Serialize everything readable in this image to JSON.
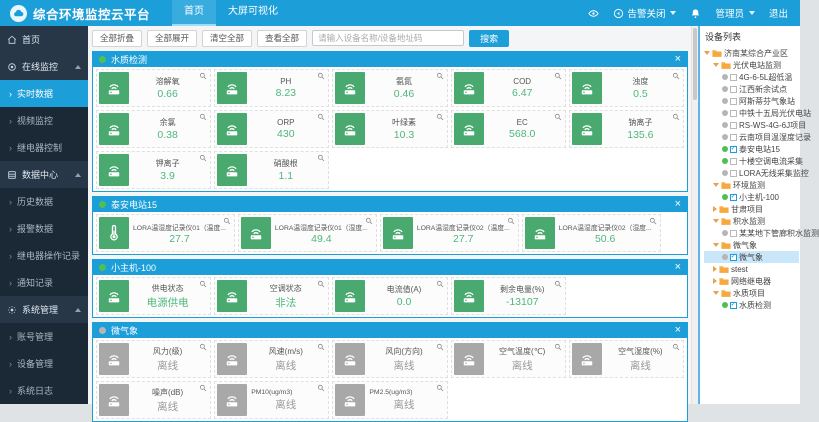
{
  "header": {
    "title": "综合环境监控云平台",
    "nav": [
      {
        "label": "首页",
        "active": true
      },
      {
        "label": "大屏可视化",
        "active": false
      }
    ],
    "right": {
      "alarm_label": "告警关闭",
      "user_label": "管理员",
      "logout_label": "退出"
    }
  },
  "sidebar": {
    "items": [
      {
        "label": "首页",
        "type": "top",
        "icon": "home-icon"
      },
      {
        "label": "在线监控",
        "type": "group",
        "icon": "monitor-icon"
      },
      {
        "label": "实时数据",
        "type": "child",
        "active": true
      },
      {
        "label": "视频监控",
        "type": "child",
        "active": false
      },
      {
        "label": "继电器控制",
        "type": "child",
        "active": false
      },
      {
        "label": "数据中心",
        "type": "group",
        "icon": "database-icon"
      },
      {
        "label": "历史数据",
        "type": "child",
        "active": false
      },
      {
        "label": "报警数据",
        "type": "child",
        "active": false
      },
      {
        "label": "继电器操作记录",
        "type": "child",
        "active": false
      },
      {
        "label": "通知记录",
        "type": "child",
        "active": false
      },
      {
        "label": "系统管理",
        "type": "group",
        "icon": "gear-icon"
      },
      {
        "label": "账号管理",
        "type": "child",
        "active": false
      },
      {
        "label": "设备管理",
        "type": "child",
        "active": false
      },
      {
        "label": "系统日志",
        "type": "child",
        "active": false
      }
    ]
  },
  "toolbar": {
    "buttons": [
      "全部折叠",
      "全部展开",
      "清空全部",
      "查看全部"
    ],
    "search_placeholder": "请输入设备名称/设备地址码",
    "search_label": "搜索"
  },
  "panels": [
    {
      "title": "水质检测",
      "dot": "green",
      "cards": [
        {
          "label": "溶解氧",
          "value": "0.66",
          "state": "online",
          "icon": "router"
        },
        {
          "label": "PH",
          "value": "8.23",
          "state": "online",
          "icon": "router"
        },
        {
          "label": "氨氮",
          "value": "0.46",
          "state": "online",
          "icon": "router"
        },
        {
          "label": "COD",
          "value": "6.47",
          "state": "online",
          "icon": "router"
        },
        {
          "label": "浊度",
          "value": "0.5",
          "state": "online",
          "icon": "router"
        },
        {
          "label": "余氯",
          "value": "0.38",
          "state": "online",
          "icon": "router"
        },
        {
          "label": "ORP",
          "value": "430",
          "state": "online",
          "icon": "router"
        },
        {
          "label": "叶绿素",
          "value": "10.3",
          "state": "online",
          "icon": "router"
        },
        {
          "label": "EC",
          "value": "568.0",
          "state": "online",
          "icon": "router"
        },
        {
          "label": "钠离子",
          "value": "135.6",
          "state": "online",
          "icon": "router"
        },
        {
          "label": "钾离子",
          "value": "3.9",
          "state": "online",
          "icon": "router"
        },
        {
          "label": "硝酸根",
          "value": "1.1",
          "state": "online",
          "icon": "router"
        }
      ]
    },
    {
      "title": "泰安电站15",
      "dot": "green",
      "cards": [
        {
          "label": "LORA温湿度记录仪01（温度...",
          "value": "27.7",
          "state": "online",
          "icon": "thermometer"
        },
        {
          "label": "LORA温湿度记录仪01（湿度...",
          "value": "49.4",
          "state": "online",
          "icon": "router"
        },
        {
          "label": "LORA温湿度记录仪02（温度...",
          "value": "27.7",
          "state": "online",
          "icon": "router"
        },
        {
          "label": "LORA温湿度记录仪02（湿度...",
          "value": "50.6",
          "state": "online",
          "icon": "router"
        }
      ]
    },
    {
      "title": "小主机-100",
      "dot": "green",
      "cards": [
        {
          "label": "供电状态",
          "value": "电源供电",
          "state": "online",
          "icon": "router"
        },
        {
          "label": "空调状态",
          "value": "非法",
          "state": "online",
          "icon": "router"
        },
        {
          "label": "电流值(A)",
          "value": "0.0",
          "state": "online",
          "icon": "router"
        },
        {
          "label": "剩余电量(%)",
          "value": "-13107",
          "state": "online",
          "icon": "router"
        }
      ]
    },
    {
      "title": "微气象",
      "dot": "gray",
      "cards": [
        {
          "label": "风力(级)",
          "value": "离线",
          "state": "offline",
          "icon": "router"
        },
        {
          "label": "风速(m/s)",
          "value": "离线",
          "state": "offline",
          "icon": "router"
        },
        {
          "label": "风向(方向)",
          "value": "离线",
          "state": "offline",
          "icon": "router"
        },
        {
          "label": "空气温度(℃)",
          "value": "离线",
          "state": "offline",
          "icon": "router"
        },
        {
          "label": "空气湿度(%)",
          "value": "离线",
          "state": "offline",
          "icon": "router"
        },
        {
          "label": "噪声(dB)",
          "value": "离线",
          "state": "offline",
          "icon": "router"
        },
        {
          "label": "PM10(ug/m3)",
          "value": "离线",
          "state": "offline",
          "icon": "router"
        },
        {
          "label": "PM2.5(ug/m3)",
          "value": "离线",
          "state": "offline",
          "icon": "router"
        }
      ]
    }
  ],
  "device_tree": {
    "title": "设备列表",
    "nodes": [
      {
        "type": "folder",
        "level": 0,
        "label": "济南某综合产业区",
        "expanded": true
      },
      {
        "type": "folder",
        "level": 1,
        "label": "光伏电站监测",
        "expanded": true
      },
      {
        "type": "device",
        "level": 2,
        "label": "4G-6-5L超低温",
        "dot": "gray",
        "checked": false,
        "selected": false
      },
      {
        "type": "device",
        "level": 2,
        "label": "江西新余试点",
        "dot": "gray",
        "checked": false,
        "selected": false
      },
      {
        "type": "device",
        "level": 2,
        "label": "阿斯蒂芬气象站",
        "dot": "gray",
        "checked": false,
        "selected": false
      },
      {
        "type": "device",
        "level": 2,
        "label": "中铁十五局光伏电站",
        "dot": "gray",
        "checked": false,
        "selected": false
      },
      {
        "type": "device",
        "level": 2,
        "label": "RS-WS-4G-6J项目",
        "dot": "gray",
        "checked": false,
        "selected": false
      },
      {
        "type": "device",
        "level": 2,
        "label": "云南项目温湿度记录",
        "dot": "gray",
        "checked": false,
        "selected": false
      },
      {
        "type": "device",
        "level": 2,
        "label": "泰安电站15",
        "dot": "green",
        "checked": true,
        "selected": false
      },
      {
        "type": "device",
        "level": 2,
        "label": "十楼空调电流采集",
        "dot": "green",
        "checked": false,
        "selected": false
      },
      {
        "type": "device",
        "level": 2,
        "label": "LORA无线采集监控",
        "dot": "gray",
        "checked": false,
        "selected": false
      },
      {
        "type": "folder",
        "level": 1,
        "label": "环境监测",
        "expanded": true
      },
      {
        "type": "device",
        "level": 2,
        "label": "小主机-100",
        "dot": "green",
        "checked": true,
        "selected": false
      },
      {
        "type": "folder",
        "level": 1,
        "label": "甘肃项目",
        "expanded": false
      },
      {
        "type": "folder",
        "level": 1,
        "label": "积水监测",
        "expanded": true
      },
      {
        "type": "device",
        "level": 2,
        "label": "某某地下管廊积水监测",
        "dot": "gray",
        "checked": false,
        "selected": false
      },
      {
        "type": "folder",
        "level": 1,
        "label": "微气象",
        "expanded": true
      },
      {
        "type": "device",
        "level": 2,
        "label": "微气象",
        "dot": "gray",
        "checked": true,
        "selected": true
      },
      {
        "type": "folder",
        "level": 1,
        "label": "stest",
        "expanded": false
      },
      {
        "type": "folder",
        "level": 1,
        "label": "网络继电器",
        "expanded": false
      },
      {
        "type": "folder",
        "level": 1,
        "label": "水质项目",
        "expanded": true
      },
      {
        "type": "device",
        "level": 2,
        "label": "水质检测",
        "dot": "green",
        "checked": true,
        "selected": false
      }
    ]
  },
  "colors": {
    "accent": "#1c9ed9",
    "online_green": "#49a96e",
    "value_green": "#4db87c",
    "offline_gray": "#a8a8a8",
    "dot_green": "#4fc04f",
    "dot_gray": "#b5b5b5",
    "folder_orange": "#f5a93f"
  }
}
